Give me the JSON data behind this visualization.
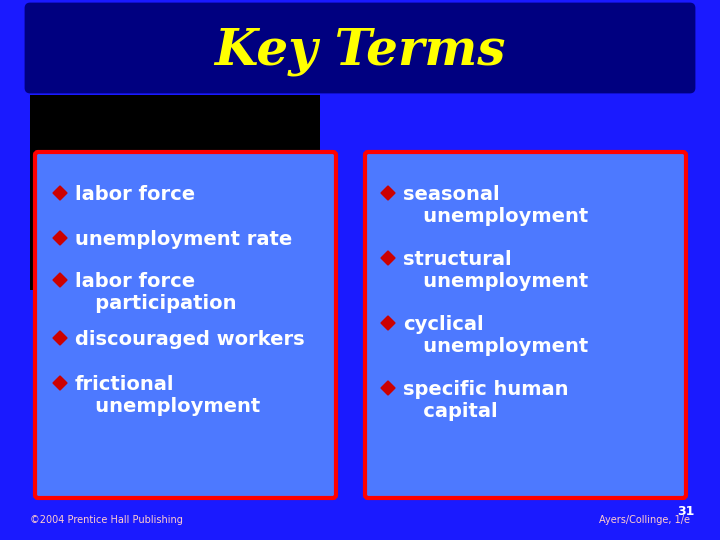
{
  "title": "Key Terms",
  "title_color": "#FFFF00",
  "title_bg_color": "#000080",
  "slide_bg_color": "#1a1aff",
  "box_bg_color": "#4d79ff",
  "box_border_color": "#ff0000",
  "footer_left": "©2004 Prentice Hall Publishing",
  "footer_right": "Ayers/Collinge, 1/e",
  "footer_page": "31",
  "left_items": [
    "labor force",
    "unemployment rate",
    "labor force\n   participation",
    "discouraged workers",
    "frictional\n   unemployment"
  ],
  "right_items": [
    "seasonal\n   unemployment",
    "structural\n   unemployment",
    "cyclical\n   unemployment",
    "specific human\n   capital"
  ],
  "bullet_color": "#cc0000",
  "text_color": "#ffffff"
}
